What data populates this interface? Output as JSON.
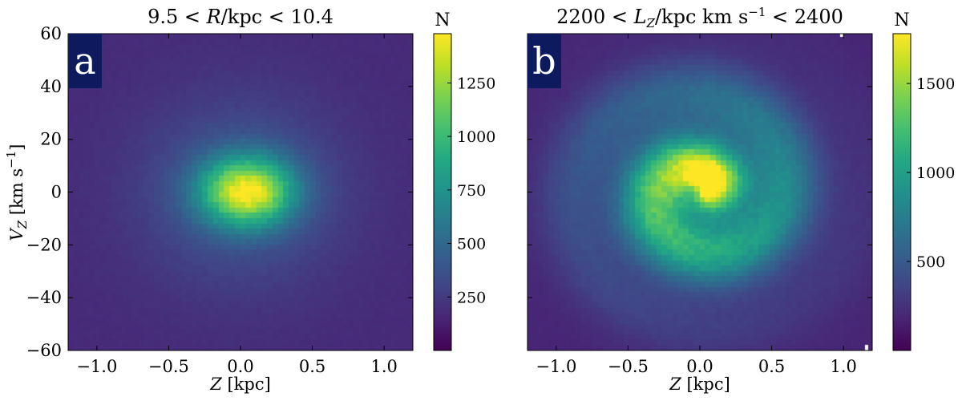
{
  "chart_data": [
    {
      "type": "heatmap",
      "panel_letter": "a",
      "title": "9.5 < R/kpc < 10.4",
      "xlabel": "Z [kpc]",
      "ylabel": "V_Z [km s^-1]",
      "xlim": [
        -1.2,
        1.2
      ],
      "ylim": [
        -60,
        60
      ],
      "xticks": [
        -1.0,
        -0.5,
        0.0,
        0.5,
        1.0
      ],
      "xtick_labels": [
        "−1.0",
        "−0.5",
        "0.0",
        "0.5",
        "1.0"
      ],
      "yticks": [
        -60,
        -40,
        -20,
        0,
        20,
        40,
        60
      ],
      "ytick_labels": [
        "−60",
        "−40",
        "−20",
        "0",
        "20",
        "40",
        "60"
      ],
      "colorbar": {
        "title": "N",
        "min": 0,
        "max": 1480,
        "ticks": [
          250,
          500,
          750,
          1000,
          1250
        ],
        "tick_labels": [
          "250",
          "500",
          "750",
          "1000",
          "1250"
        ]
      },
      "colormap": "viridis",
      "peak_count": 1480,
      "peak_location": [
        0.05,
        0
      ],
      "features": "single centered density peak, faint outer ring"
    },
    {
      "type": "heatmap",
      "panel_letter": "b",
      "title": "2200 < L_Z/kpc km s^-1 < 2400",
      "xlabel": "Z [kpc]",
      "ylabel": "",
      "xlim": [
        -1.2,
        1.2
      ],
      "ylim": [
        -60,
        60
      ],
      "xticks": [
        -1.0,
        -0.5,
        0.0,
        0.5,
        1.0
      ],
      "xtick_labels": [
        "−1.0",
        "−0.5",
        "0.0",
        "0.5",
        "1.0"
      ],
      "yticks": [
        -60,
        -40,
        -20,
        0,
        20,
        40,
        60
      ],
      "ytick_labels": [],
      "colorbar": {
        "title": "N",
        "min": 0,
        "max": 1780,
        "ticks": [
          500,
          1000,
          1500
        ],
        "tick_labels": [
          "500",
          "1000",
          "1500"
        ]
      },
      "colormap": "viridis",
      "peak_count": 1780,
      "peak_location": [
        0.08,
        4
      ],
      "features": "phase-space spiral (snail) around the origin"
    }
  ]
}
